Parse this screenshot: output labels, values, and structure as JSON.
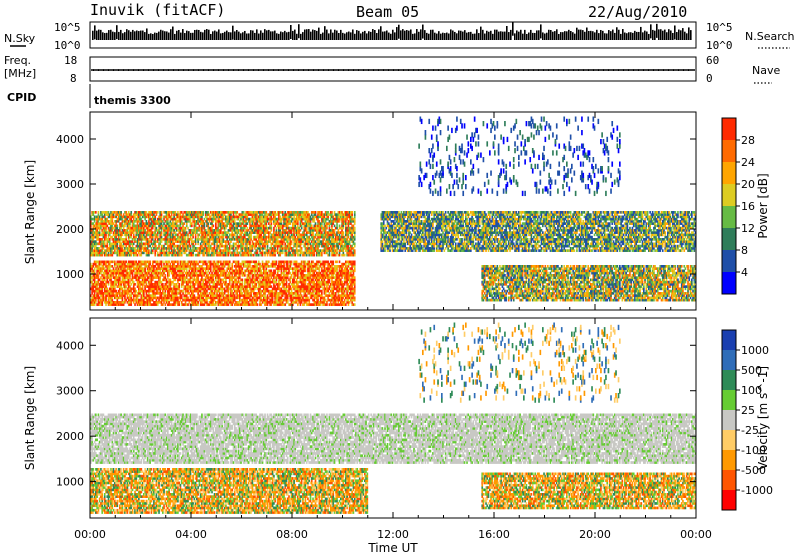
{
  "header": {
    "station": "Inuvik (fitACF)",
    "beam": "Beam 05",
    "date": "22/Aug/2010"
  },
  "top_panels": {
    "nsky_label": "N.Sky",
    "nsky_tick_top": "10^5",
    "nsky_tick_bottom": "10^0",
    "nsearch_label": "N.Search",
    "nsearch_tick_top": "10^5",
    "nsearch_tick_bottom": "10^0",
    "freq_label": "Freq.",
    "freq_unit": "[MHz]",
    "freq_tick_top": "18",
    "freq_tick_bottom": "8",
    "nave_label": "Nave",
    "nave_tick_top": "60",
    "nave_tick_bottom": "0",
    "cpid_label": "CPID",
    "cpid_value": "themis 3300"
  },
  "chart_data": [
    {
      "type": "heatmap",
      "name": "power",
      "ylabel": "Slant Range [km]",
      "yticks": [
        "1000",
        "2000",
        "3000",
        "4000"
      ],
      "ylim": [
        200,
        4600
      ],
      "xlim_hours": [
        0,
        24
      ],
      "colorbar": {
        "label": "Power [dB]",
        "ticks": [
          "4",
          "8",
          "12",
          "16",
          "20",
          "24",
          "28"
        ],
        "colors": [
          "#0000ff",
          "#1f4fa8",
          "#2f7d5a",
          "#66bb44",
          "#ddcc22",
          "#ffa500",
          "#ff6a00",
          "#ff2a00"
        ]
      },
      "bands": [
        {
          "t0": 0.0,
          "t1": 10.5,
          "r0": 1400,
          "r1": 2400,
          "level": "mixed-orange-green"
        },
        {
          "t0": 0.0,
          "t1": 10.5,
          "r0": 300,
          "r1": 1300,
          "level": "strong-red"
        },
        {
          "t0": 11.5,
          "t1": 24.0,
          "r0": 1500,
          "r1": 2400,
          "level": "blue-green-orange"
        },
        {
          "t0": 15.5,
          "t1": 24.0,
          "r0": 400,
          "r1": 1200,
          "level": "green-orange"
        },
        {
          "t0": 13.0,
          "t1": 21.0,
          "r0": 2800,
          "r1": 4500,
          "level": "scattered-blue"
        }
      ]
    },
    {
      "type": "heatmap",
      "name": "velocity",
      "ylabel": "Slant Range [km]",
      "yticks": [
        "1000",
        "2000",
        "3000",
        "4000"
      ],
      "ylim": [
        200,
        4600
      ],
      "xlim_hours": [
        0,
        24
      ],
      "xticks": [
        "00:00",
        "04:00",
        "08:00",
        "12:00",
        "16:00",
        "20:00",
        "00:00"
      ],
      "xlabel": "Time UT",
      "colorbar": {
        "label": "Velocity [m s^-1]",
        "ticks": [
          "1000",
          "500",
          "100",
          "25",
          "-25",
          "-100",
          "-500",
          "-1000"
        ],
        "colors": [
          "#1a3fb0",
          "#2f6db8",
          "#2e8b57",
          "#66cc33",
          "#c8c8c4",
          "#ffcc66",
          "#ff9900",
          "#ff5500",
          "#ff0000"
        ]
      },
      "bands": [
        {
          "t0": 0.0,
          "t1": 24.0,
          "r0": 1400,
          "r1": 2500,
          "level": "grey-ground-scatter"
        },
        {
          "t0": 0.0,
          "t1": 11.0,
          "r0": 300,
          "r1": 1300,
          "level": "orange-green"
        },
        {
          "t0": 15.5,
          "t1": 24.0,
          "r0": 400,
          "r1": 1200,
          "level": "orange-green"
        },
        {
          "t0": 13.0,
          "t1": 21.0,
          "r0": 2800,
          "r1": 4500,
          "level": "scattered"
        }
      ]
    }
  ]
}
